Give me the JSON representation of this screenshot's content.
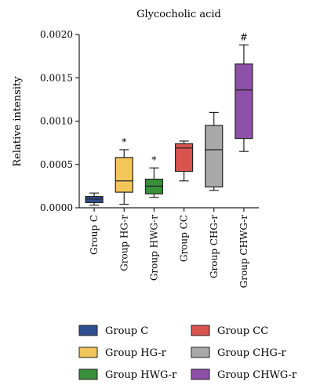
{
  "chart_data": {
    "type": "box",
    "title": "Glycocholic acid",
    "ylabel": "Relative intensity",
    "xlabel": "",
    "ylim": [
      0,
      0.002
    ],
    "yticks": [
      "0.0000",
      "0.0005",
      "0.0010",
      "0.0015",
      "0.0020"
    ],
    "ytick_values": [
      0,
      0.0005,
      0.001,
      0.0015,
      0.002
    ],
    "groups": [
      {
        "name": "Group C",
        "color": "#2e4f8f",
        "min": 3e-05,
        "q1": 6e-05,
        "median": 0.0001,
        "q3": 0.00013,
        "max": 0.00017,
        "mark": ""
      },
      {
        "name": "Group HG-r",
        "color": "#f2c65b",
        "min": 4e-05,
        "q1": 0.00018,
        "median": 0.00031,
        "q3": 0.00058,
        "max": 0.00067,
        "mark": "*"
      },
      {
        "name": "Group HWG-r",
        "color": "#3a8f3a",
        "min": 0.00012,
        "q1": 0.00016,
        "median": 0.00025,
        "q3": 0.00033,
        "max": 0.00046,
        "mark": "*"
      },
      {
        "name": "Group CC",
        "color": "#d9534f",
        "min": 0.00031,
        "q1": 0.00042,
        "median": 0.00069,
        "q3": 0.00074,
        "max": 0.00077,
        "mark": ""
      },
      {
        "name": "Group CHG-r",
        "color": "#a9a9a9",
        "min": 0.0002,
        "q1": 0.00024,
        "median": 0.00067,
        "q3": 0.00095,
        "max": 0.0011,
        "mark": ""
      },
      {
        "name": "Group CHWG-r",
        "color": "#8e4fa8",
        "min": 0.00065,
        "q1": 0.0008,
        "median": 0.00136,
        "q3": 0.00166,
        "max": 0.00188,
        "mark": "#"
      }
    ],
    "legend_placement": "bottom",
    "grid": false
  }
}
